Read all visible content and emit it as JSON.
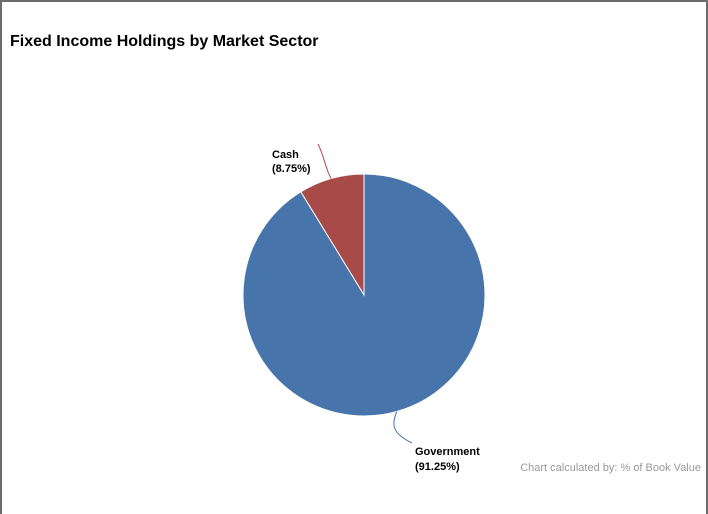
{
  "chart_data": {
    "type": "pie",
    "title": "Fixed Income Holdings by Market Sector",
    "slices": [
      {
        "name": "Cash",
        "label": "(8.75%)",
        "value": 8.75,
        "color": "#a84a48"
      },
      {
        "name": "Government",
        "label": "(91.25%)",
        "value": 91.25,
        "color": "#4674ab"
      }
    ],
    "start_angle": "12 o'clock, counterclockwise",
    "footnote": "Chart calculated by: % of Book Value"
  }
}
